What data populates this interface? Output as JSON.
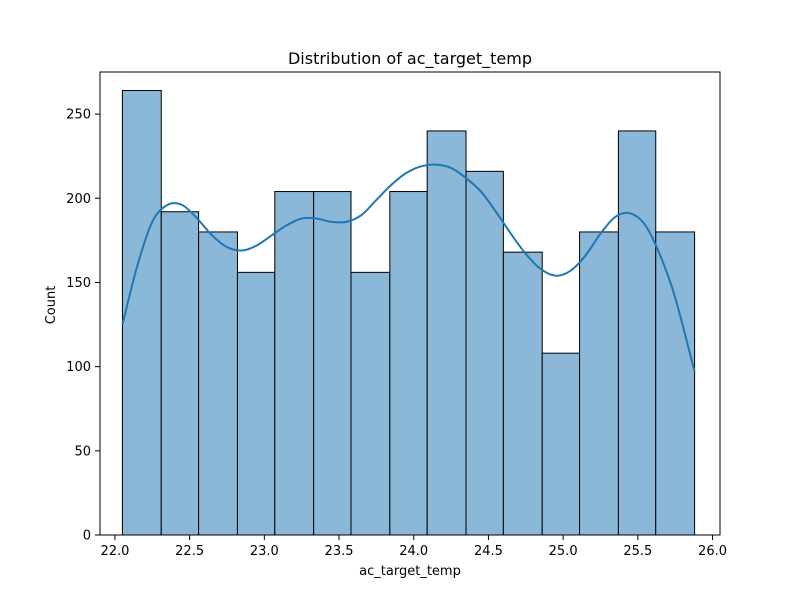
{
  "chart_data": {
    "type": "bar",
    "title": "Distribution of ac_target_temp",
    "xlabel": "ac_target_temp",
    "ylabel": "Count",
    "xlim": [
      21.9,
      26.05
    ],
    "ylim": [
      0,
      275
    ],
    "x_ticks": [
      "22.0",
      "22.5",
      "23.0",
      "23.5",
      "24.0",
      "24.5",
      "25.0",
      "25.5",
      "26.0"
    ],
    "y_ticks": [
      "0",
      "50",
      "100",
      "150",
      "200",
      "250"
    ],
    "bins": [
      {
        "x0": 22.05,
        "x1": 22.31,
        "count": 264
      },
      {
        "x0": 22.31,
        "x1": 22.56,
        "count": 192
      },
      {
        "x0": 22.56,
        "x1": 22.82,
        "count": 180
      },
      {
        "x0": 22.82,
        "x1": 23.07,
        "count": 156
      },
      {
        "x0": 23.07,
        "x1": 23.33,
        "count": 204
      },
      {
        "x0": 23.33,
        "x1": 23.58,
        "count": 204
      },
      {
        "x0": 23.58,
        "x1": 23.84,
        "count": 156
      },
      {
        "x0": 23.84,
        "x1": 24.09,
        "count": 204
      },
      {
        "x0": 24.09,
        "x1": 24.35,
        "count": 240
      },
      {
        "x0": 24.35,
        "x1": 24.6,
        "count": 216
      },
      {
        "x0": 24.6,
        "x1": 24.86,
        "count": 168
      },
      {
        "x0": 24.86,
        "x1": 25.11,
        "count": 108
      },
      {
        "x0": 25.11,
        "x1": 25.37,
        "count": 180
      },
      {
        "x0": 25.37,
        "x1": 25.62,
        "count": 240
      },
      {
        "x0": 25.62,
        "x1": 25.88,
        "count": 180
      }
    ],
    "kde": {
      "x": [
        22.05,
        22.15,
        22.25,
        22.35,
        22.45,
        22.55,
        22.65,
        22.75,
        22.85,
        22.95,
        23.05,
        23.15,
        23.25,
        23.35,
        23.45,
        23.55,
        23.65,
        23.75,
        23.85,
        23.95,
        24.05,
        24.15,
        24.25,
        24.35,
        24.45,
        24.55,
        24.65,
        24.75,
        24.85,
        24.95,
        25.05,
        25.15,
        25.25,
        25.35,
        25.45,
        25.55,
        25.65,
        25.75,
        25.88
      ],
      "y": [
        125,
        160,
        186,
        196,
        196,
        188,
        178,
        171,
        169,
        172,
        178,
        184,
        188,
        188,
        186,
        186,
        190,
        199,
        208,
        215,
        219,
        220,
        218,
        212,
        204,
        192,
        179,
        167,
        158,
        154,
        157,
        166,
        179,
        189,
        191,
        184,
        166,
        141,
        97
      ]
    },
    "colors": {
      "bar_fill": "#8bb7d9",
      "bar_edge": "#000000",
      "kde_line": "#1f77b4"
    },
    "grid": false
  }
}
